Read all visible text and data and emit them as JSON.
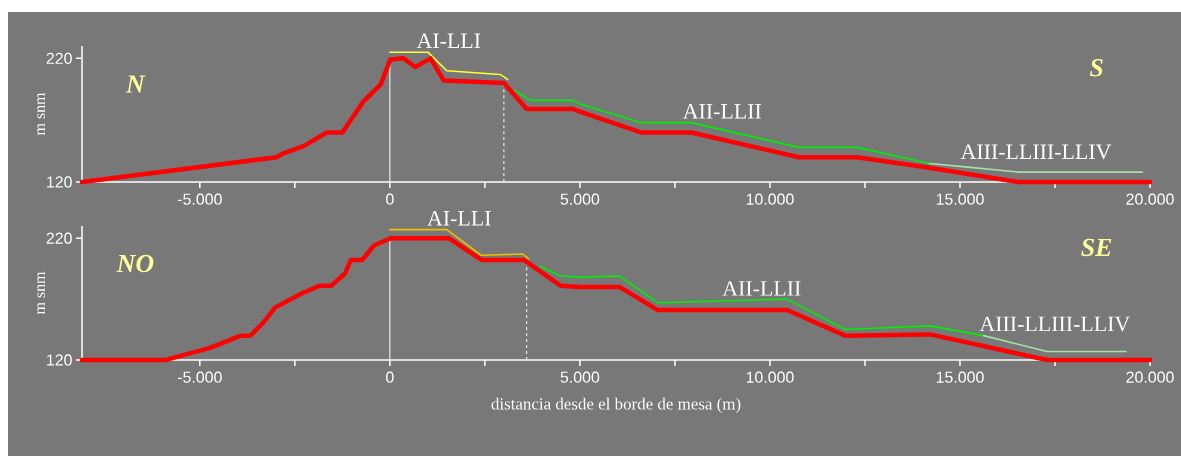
{
  "chart_data": [
    {
      "type": "line",
      "ylabel": "m snm",
      "xlim": [
        -8100,
        20000
      ],
      "ylim": [
        120,
        230
      ],
      "xticks": [
        {
          "value": -5000,
          "label": "-5.000"
        },
        {
          "value": -2500,
          "label": null
        },
        {
          "value": 0,
          "label": "0"
        },
        {
          "value": 2500,
          "label": null
        },
        {
          "value": 5000,
          "label": "5.000"
        },
        {
          "value": 7500,
          "label": null
        },
        {
          "value": 10000,
          "label": "10.000"
        },
        {
          "value": 12500,
          "label": null
        },
        {
          "value": 15000,
          "label": "15.000"
        },
        {
          "value": 17500,
          "label": null
        },
        {
          "value": 20000,
          "label": "20.000"
        }
      ],
      "yticks": [
        120,
        220
      ],
      "annotations": [
        "N",
        "S"
      ],
      "ref_lines": [
        {
          "axis": "x",
          "value": 0,
          "color": "#ffffff",
          "line_style": "solid"
        },
        {
          "axis": "x",
          "value": 3000,
          "color": "#ffffff",
          "line_style": "dashed"
        }
      ],
      "series": [
        {
          "color": "#ff0000",
          "x": [
            -8100,
            -2980,
            -2820,
            -2270,
            -1660,
            -1250,
            -900,
            -700,
            -240,
            10,
            360,
            670,
            1070,
            1420,
            3000,
            3600,
            4820,
            5000,
            6620,
            7930,
            10760,
            12290,
            14100,
            16540,
            20000
          ],
          "values": [
            120,
            140,
            143,
            149,
            160,
            160,
            176,
            185,
            199,
            219,
            220,
            213,
            220,
            202,
            200,
            179,
            179,
            177,
            160,
            160,
            140,
            140,
            132,
            120,
            120
          ]
        },
        {
          "name": "AI-LLI",
          "color": "#ffff33",
          "x": [
            0,
            1000,
            1500,
            2900,
            3100
          ],
          "values": [
            225,
            225,
            210,
            207,
            203
          ]
        },
        {
          "name": "AII-LLII",
          "color": "#00ee00",
          "x": [
            3290,
            3700,
            4820,
            5000,
            6620,
            7930,
            10760,
            12290,
            14200
          ],
          "values": [
            194,
            186,
            186,
            183,
            168,
            168,
            148,
            148,
            135
          ]
        },
        {
          "name": "AIII-LLIII-LLIV",
          "color": "#a8e0a8",
          "x": [
            14200,
            15200,
            16540,
            19800
          ],
          "values": [
            135,
            132,
            128,
            128
          ]
        }
      ]
    },
    {
      "type": "line",
      "ylabel": "m snm",
      "xlabel": "distancia desde el borde de mesa (m)",
      "xlim": [
        -8100,
        20000
      ],
      "ylim": [
        120,
        230
      ],
      "xticks": [
        {
          "value": -5000,
          "label": "-5.000"
        },
        {
          "value": -2500,
          "label": null
        },
        {
          "value": 0,
          "label": "0"
        },
        {
          "value": 2500,
          "label": null
        },
        {
          "value": 5000,
          "label": "5.000"
        },
        {
          "value": 7500,
          "label": null
        },
        {
          "value": 10000,
          "label": "10.000"
        },
        {
          "value": 12500,
          "label": null
        },
        {
          "value": 15000,
          "label": "15.000"
        },
        {
          "value": 17500,
          "label": null
        },
        {
          "value": 20000,
          "label": "20.000"
        }
      ],
      "yticks": [
        120,
        220
      ],
      "annotations": [
        "NO",
        "SE"
      ],
      "ref_lines": [
        {
          "axis": "x",
          "value": 0,
          "color": "#ffffff",
          "line_style": "solid"
        },
        {
          "axis": "x",
          "value": 3600,
          "color": "#ffffff",
          "line_style": "dashed"
        }
      ],
      "series": [
        {
          "color": "#ff0000",
          "x": [
            -8100,
            -5900,
            -5440,
            -4730,
            -3920,
            -3670,
            -3320,
            -3020,
            -2300,
            -1840,
            -1540,
            -1180,
            -1030,
            -730,
            -420,
            30,
            1550,
            2420,
            3530,
            4490,
            4980,
            6040,
            7050,
            10450,
            11980,
            14210,
            17290,
            20000
          ],
          "values": [
            120,
            120,
            124,
            130,
            140,
            140,
            151,
            163,
            175,
            181,
            181,
            191,
            202,
            202,
            214,
            220,
            220,
            202,
            202,
            181,
            180,
            180,
            161,
            161,
            140,
            141,
            120,
            120
          ]
        },
        {
          "name": "AI-LLI",
          "color": "#e6c000",
          "x": [
            0,
            1500,
            2400,
            3500,
            3650
          ],
          "values": [
            227,
            227,
            206,
            207,
            203
          ]
        },
        {
          "name": "AII-LLII",
          "color": "#00ee00",
          "x": [
            3950,
            4490,
            4980,
            6040,
            7050,
            10450,
            11980,
            14210,
            15620
          ],
          "values": [
            197,
            189,
            188,
            189,
            167,
            170,
            145,
            148,
            140
          ]
        },
        {
          "name": "AIII-LLIII-LLIV",
          "color": "#a8e0a8",
          "x": [
            15620,
            17290,
            19370
          ],
          "values": [
            140,
            127,
            127
          ]
        }
      ]
    }
  ]
}
